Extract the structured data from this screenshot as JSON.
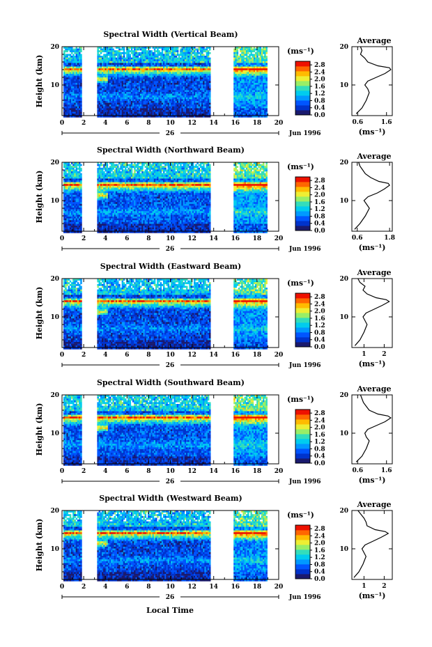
{
  "chart_data": {
    "type": "heatmap",
    "colormap": [
      "#1a1a6e",
      "#0033cc",
      "#0055ff",
      "#0099ff",
      "#00ccee",
      "#33ddbb",
      "#99ee66",
      "#eeee33",
      "#ffbb00",
      "#ff6600",
      "#ee1100"
    ],
    "xaxis": {
      "ticks": [
        "0",
        "2",
        "4",
        "6",
        "8",
        "10",
        "12",
        "14",
        "16",
        "18",
        "20"
      ],
      "range": [
        0,
        20
      ],
      "date_label": "26",
      "month_label": "Jun 1996"
    },
    "yaxis": {
      "ticks": [
        "10",
        "20"
      ],
      "range": [
        2,
        20
      ],
      "label": "Height (km)"
    },
    "colorbar": {
      "unit": "(ms⁻¹)",
      "ticks": [
        "2.8",
        "2.4",
        "2.0",
        "1.6",
        "1.2",
        "0.8",
        "0.4",
        "0.0"
      ],
      "range": [
        0.0,
        3.0
      ]
    },
    "data_gaps_hours": [
      [
        1.7,
        3.1
      ],
      [
        13.6,
        15.8
      ]
    ],
    "data_end_hour": 18.9,
    "average_profile": {
      "title": "Average",
      "xlabel": "(ms⁻¹)",
      "yticks": [
        "10",
        "20"
      ]
    },
    "xlabel": "Local Time",
    "panels": [
      {
        "title": "Spectral Width (Vertical Beam)",
        "avg_xticks": [
          "0.6",
          "1.6"
        ],
        "avg_xrange": [
          0.4,
          1.8
        ],
        "date_tick": "26",
        "month_tick": "Jun 1996",
        "profile": {
          "height": [
            2.5,
            4,
            6,
            8,
            9,
            10,
            11,
            12,
            13,
            14,
            14.5,
            15,
            16,
            17,
            18,
            19,
            20
          ],
          "value": [
            0.55,
            0.75,
            0.9,
            1.0,
            0.95,
            0.85,
            0.95,
            1.25,
            1.55,
            1.75,
            1.7,
            1.3,
            0.95,
            0.85,
            0.7,
            0.75,
            0.7
          ]
        }
      },
      {
        "title": "Spectral Width (Northward Beam)",
        "avg_xticks": [
          "0.6",
          "1.8"
        ],
        "avg_xrange": [
          0.4,
          1.9
        ],
        "date_tick": "26",
        "month_tick": "Jun 1996",
        "profile": {
          "height": [
            2.5,
            4,
            6,
            8,
            9,
            10,
            11,
            12,
            13,
            14,
            14.5,
            15,
            16,
            17,
            18,
            19,
            20
          ],
          "value": [
            0.5,
            0.7,
            0.9,
            1.05,
            0.95,
            0.85,
            1.0,
            1.35,
            1.6,
            1.8,
            1.75,
            1.4,
            1.1,
            0.9,
            0.8,
            0.7,
            0.65
          ]
        }
      },
      {
        "title": "Spectral Width (Eastward Beam)",
        "avg_xticks": [
          "1",
          "2"
        ],
        "avg_xrange": [
          0.4,
          2.4
        ],
        "date_tick": "26",
        "month_tick": "Jun 1996",
        "profile": {
          "height": [
            2.5,
            4,
            6,
            8,
            9,
            10,
            11,
            12,
            13,
            14,
            14.5,
            15,
            16,
            17,
            18,
            19,
            20
          ],
          "value": [
            0.55,
            0.8,
            1.0,
            1.15,
            1.05,
            0.95,
            1.1,
            1.5,
            1.9,
            2.25,
            2.1,
            1.6,
            1.15,
            0.95,
            1.05,
            0.8,
            0.7
          ]
        }
      },
      {
        "title": "Spectral Width (Southward Beam)",
        "avg_xticks": [
          "0.6",
          "1.6"
        ],
        "avg_xrange": [
          0.4,
          1.8
        ],
        "date_tick": "26",
        "month_tick": "Jun 1996",
        "profile": {
          "height": [
            2.5,
            4,
            6,
            8,
            9,
            10,
            11,
            12,
            13,
            14,
            14.5,
            15,
            16,
            17,
            18,
            19,
            20
          ],
          "value": [
            0.55,
            0.75,
            0.9,
            1.0,
            0.9,
            0.85,
            0.95,
            1.25,
            1.55,
            1.75,
            1.65,
            1.3,
            1.0,
            0.9,
            0.8,
            0.75,
            0.7
          ]
        }
      },
      {
        "title": "Spectral Width (Westward Beam)",
        "avg_xticks": [
          "1",
          "2"
        ],
        "avg_xrange": [
          0.4,
          2.4
        ],
        "date_tick": "26",
        "month_tick": "Jun 1996",
        "profile": {
          "height": [
            2.5,
            4,
            6,
            8,
            9,
            10,
            11,
            12,
            13,
            14,
            14.5,
            15,
            16,
            17,
            18,
            19,
            20
          ],
          "value": [
            0.5,
            0.75,
            0.95,
            1.1,
            1.0,
            0.9,
            1.05,
            1.45,
            1.85,
            2.2,
            2.05,
            1.55,
            1.15,
            1.1,
            1.0,
            0.85,
            0.7
          ]
        }
      }
    ]
  }
}
